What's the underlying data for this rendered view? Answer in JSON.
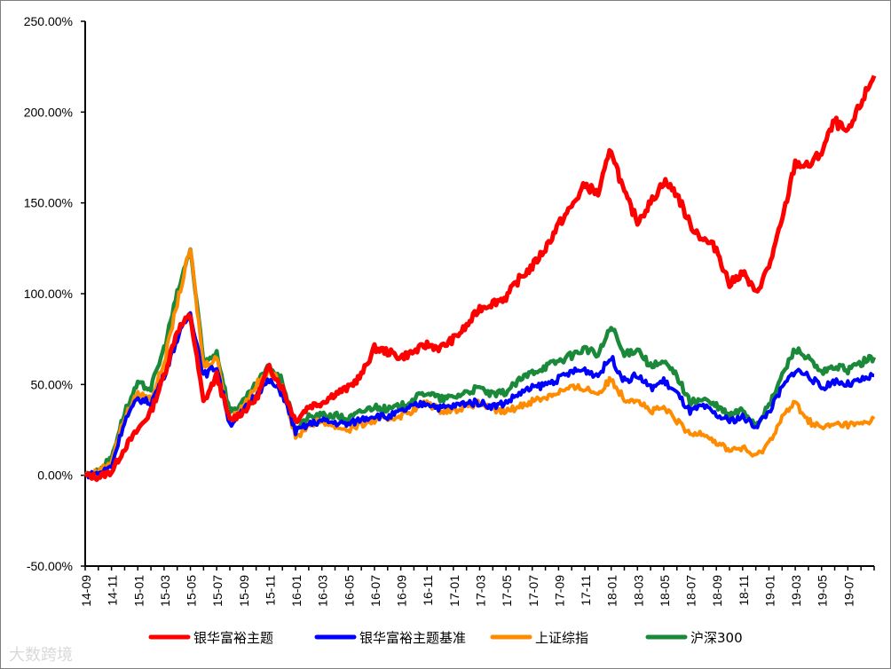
{
  "chart_data": {
    "type": "line",
    "title": "",
    "xlabel": "",
    "ylabel": "",
    "ylim": [
      -0.5,
      2.5
    ],
    "y_ticks": [
      2.5,
      2.0,
      1.5,
      1.0,
      0.5,
      0.0,
      -0.5
    ],
    "y_tick_labels": [
      "250.00%",
      "200.00%",
      "150.00%",
      "100.00%",
      "50.00%",
      "0.00%",
      "-50.00%"
    ],
    "x_tick_labels": [
      "14-09",
      "14-11",
      "15-01",
      "15-03",
      "15-05",
      "15-07",
      "15-09",
      "15-11",
      "16-01",
      "16-03",
      "16-05",
      "16-07",
      "16-09",
      "16-11",
      "17-01",
      "17-03",
      "17-05",
      "17-07",
      "17-09",
      "17-11",
      "18-01",
      "18-03",
      "18-05",
      "18-07",
      "18-09",
      "18-11",
      "19-01",
      "19-03",
      "19-05",
      "19-07"
    ],
    "grid": false,
    "legend_position": "bottom",
    "x": [
      "14-09",
      "14-10",
      "14-11",
      "14-12",
      "15-01",
      "15-02",
      "15-03",
      "15-04",
      "15-05",
      "15-06",
      "15-07",
      "15-08",
      "15-09",
      "15-10",
      "15-11",
      "15-12",
      "16-01",
      "16-02",
      "16-03",
      "16-04",
      "16-05",
      "16-06",
      "16-07",
      "16-08",
      "16-09",
      "16-10",
      "16-11",
      "16-12",
      "17-01",
      "17-02",
      "17-03",
      "17-04",
      "17-05",
      "17-06",
      "17-07",
      "17-08",
      "17-09",
      "17-10",
      "17-11",
      "17-12",
      "18-01",
      "18-02",
      "18-03",
      "18-04",
      "18-05",
      "18-06",
      "18-07",
      "18-08",
      "18-09",
      "18-10",
      "18-11",
      "18-12",
      "19-01",
      "19-02",
      "19-03",
      "19-04",
      "19-05",
      "19-06",
      "19-07",
      "19-08",
      "19-09"
    ],
    "series": [
      {
        "name": "银华富裕主题",
        "color": "#ff0000",
        "values": [
          0.0,
          -0.01,
          0.02,
          0.15,
          0.25,
          0.35,
          0.55,
          0.8,
          0.88,
          0.4,
          0.55,
          0.3,
          0.35,
          0.42,
          0.6,
          0.48,
          0.3,
          0.38,
          0.4,
          0.45,
          0.48,
          0.55,
          0.7,
          0.68,
          0.65,
          0.68,
          0.72,
          0.7,
          0.75,
          0.82,
          0.92,
          0.95,
          0.98,
          1.08,
          1.15,
          1.25,
          1.38,
          1.48,
          1.6,
          1.55,
          1.8,
          1.55,
          1.4,
          1.5,
          1.62,
          1.55,
          1.38,
          1.3,
          1.25,
          1.05,
          1.12,
          1.0,
          1.15,
          1.4,
          1.72,
          1.7,
          1.78,
          1.95,
          1.88,
          2.05,
          2.2
        ]
      },
      {
        "name": "银华富裕主题基准",
        "color": "#0000ff",
        "values": [
          0.0,
          0.01,
          0.05,
          0.3,
          0.42,
          0.4,
          0.55,
          0.75,
          0.9,
          0.55,
          0.6,
          0.28,
          0.35,
          0.45,
          0.52,
          0.45,
          0.24,
          0.28,
          0.3,
          0.29,
          0.28,
          0.31,
          0.33,
          0.32,
          0.35,
          0.38,
          0.4,
          0.37,
          0.38,
          0.4,
          0.4,
          0.38,
          0.4,
          0.45,
          0.48,
          0.5,
          0.53,
          0.57,
          0.58,
          0.55,
          0.65,
          0.52,
          0.55,
          0.48,
          0.52,
          0.45,
          0.35,
          0.38,
          0.33,
          0.3,
          0.32,
          0.27,
          0.35,
          0.48,
          0.58,
          0.55,
          0.48,
          0.52,
          0.5,
          0.52,
          0.55
        ]
      },
      {
        "name": "上证综指",
        "color": "#ff8c00",
        "values": [
          0.0,
          0.02,
          0.08,
          0.32,
          0.45,
          0.42,
          0.62,
          0.95,
          1.25,
          0.6,
          0.65,
          0.3,
          0.38,
          0.5,
          0.57,
          0.5,
          0.2,
          0.28,
          0.3,
          0.27,
          0.25,
          0.28,
          0.3,
          0.31,
          0.33,
          0.36,
          0.4,
          0.36,
          0.36,
          0.38,
          0.4,
          0.36,
          0.35,
          0.38,
          0.41,
          0.43,
          0.46,
          0.48,
          0.48,
          0.45,
          0.53,
          0.42,
          0.42,
          0.35,
          0.37,
          0.3,
          0.22,
          0.24,
          0.18,
          0.14,
          0.15,
          0.1,
          0.18,
          0.32,
          0.4,
          0.3,
          0.26,
          0.28,
          0.28,
          0.28,
          0.31
        ]
      },
      {
        "name": "沪深300",
        "color": "#1a8a3a",
        "values": [
          0.0,
          0.02,
          0.1,
          0.35,
          0.5,
          0.48,
          0.7,
          1.0,
          1.25,
          0.62,
          0.68,
          0.35,
          0.4,
          0.5,
          0.6,
          0.52,
          0.25,
          0.32,
          0.33,
          0.33,
          0.31,
          0.35,
          0.38,
          0.36,
          0.38,
          0.42,
          0.46,
          0.42,
          0.43,
          0.46,
          0.48,
          0.44,
          0.46,
          0.52,
          0.57,
          0.6,
          0.63,
          0.66,
          0.7,
          0.66,
          0.82,
          0.66,
          0.7,
          0.6,
          0.62,
          0.55,
          0.4,
          0.42,
          0.38,
          0.33,
          0.36,
          0.28,
          0.38,
          0.55,
          0.7,
          0.64,
          0.56,
          0.6,
          0.58,
          0.62,
          0.65
        ]
      }
    ]
  },
  "watermark": "大数跨境"
}
